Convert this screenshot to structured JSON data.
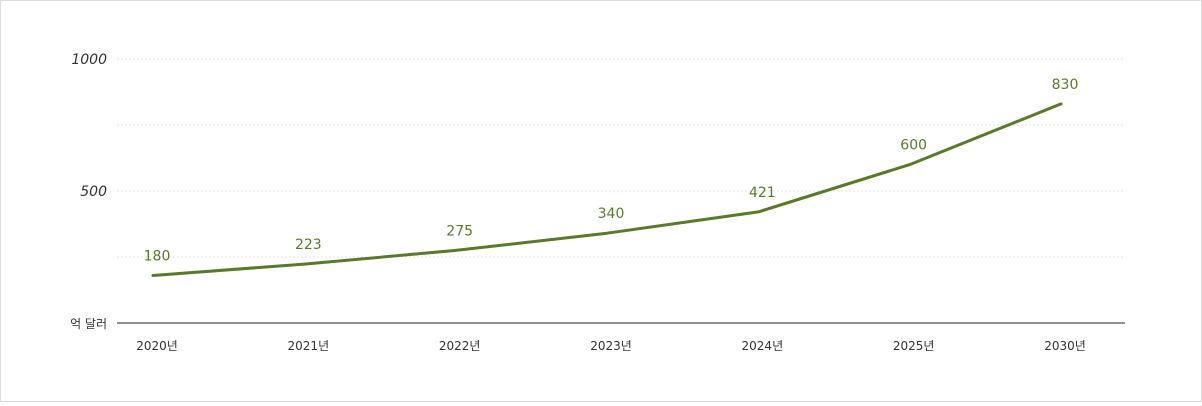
{
  "chart_data": {
    "type": "line",
    "x": [
      "2020년",
      "2021년",
      "2022년",
      "2023년",
      "2024년",
      "2025년",
      "2030년"
    ],
    "series": [
      {
        "values": [
          180,
          223,
          275,
          340,
          421,
          600,
          830
        ]
      }
    ],
    "data_labels": [
      "180",
      "223",
      "275",
      "340",
      "421",
      "600",
      "830"
    ],
    "y_ticks": [
      {
        "value": 500,
        "label": "500"
      },
      {
        "value": 1000,
        "label": "1000"
      }
    ],
    "ylim": [
      0,
      1000
    ],
    "y_unit": "억 달러",
    "grid": "horizontal dotted",
    "colors": {
      "line": "#5a7a2a",
      "label": "#5a7a2a",
      "axis": "#222222",
      "grid": "#e2e2e2"
    }
  }
}
